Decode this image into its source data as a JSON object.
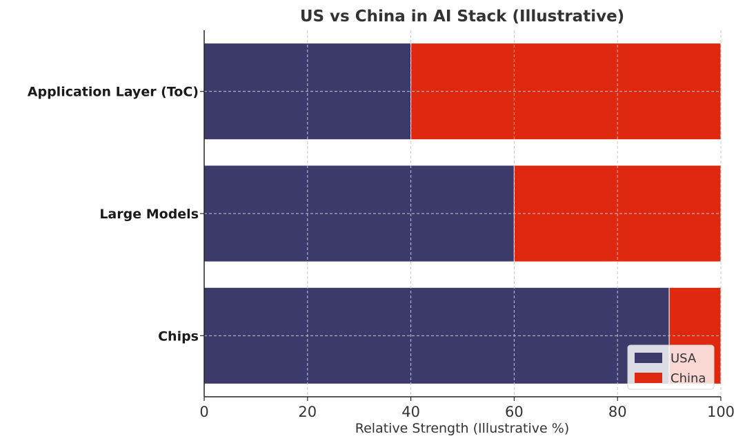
{
  "chart_data": {
    "type": "bar",
    "orientation": "horizontal",
    "stacked": true,
    "title": "US vs China in AI Stack (Illustrative)",
    "xlabel": "Relative Strength (Illustrative %)",
    "ylabel": "",
    "categories": [
      "Chips",
      "Large Models",
      "Application Layer (ToC)"
    ],
    "series": [
      {
        "name": "USA",
        "values": [
          90,
          60,
          40
        ],
        "color": "#3b3a6b"
      },
      {
        "name": "China",
        "values": [
          10,
          40,
          60
        ],
        "color": "#de2910"
      }
    ],
    "xlim": [
      0,
      100
    ],
    "xticks": [
      "0",
      "20",
      "40",
      "60",
      "80",
      "100"
    ],
    "grid": true,
    "legend_position": "lower-right"
  }
}
